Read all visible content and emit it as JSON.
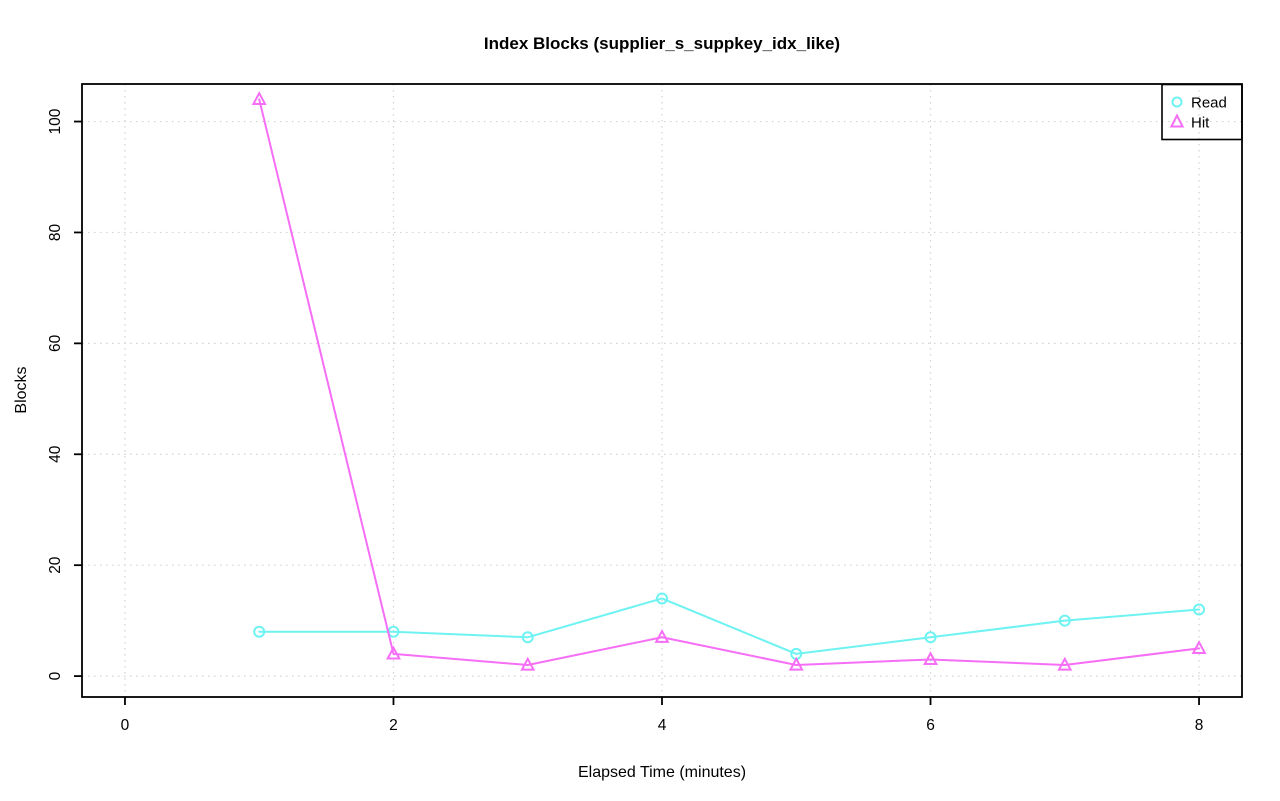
{
  "figure": {
    "background": "#ffffff",
    "axis_color": "#000000"
  },
  "chart_data": {
    "type": "line",
    "title": "Index Blocks (supplier_s_suppkey_idx_like)",
    "xlabel": "Elapsed Time (minutes)",
    "ylabel": "Blocks",
    "x": [
      1,
      2,
      3,
      4,
      5,
      6,
      7,
      8
    ],
    "series": [
      {
        "name": "Read",
        "marker": "circle",
        "color": "#6ef2f2",
        "values": [
          8,
          8,
          7,
          14,
          4,
          7,
          10,
          12
        ]
      },
      {
        "name": "Hit",
        "marker": "triangle",
        "color": "#f56ef5",
        "values": [
          104,
          4,
          2,
          7,
          2,
          3,
          2,
          5
        ]
      }
    ],
    "x_ticks": [
      0,
      2,
      4,
      6,
      8
    ],
    "y_ticks": [
      0,
      20,
      40,
      60,
      80,
      100
    ],
    "xlim": [
      -0.32,
      8.32
    ],
    "ylim": [
      -3.77,
      106.77
    ],
    "grid": true,
    "grid_style": "dotted",
    "grid_color": "#d2d2d2",
    "legend_position": "top-right"
  }
}
